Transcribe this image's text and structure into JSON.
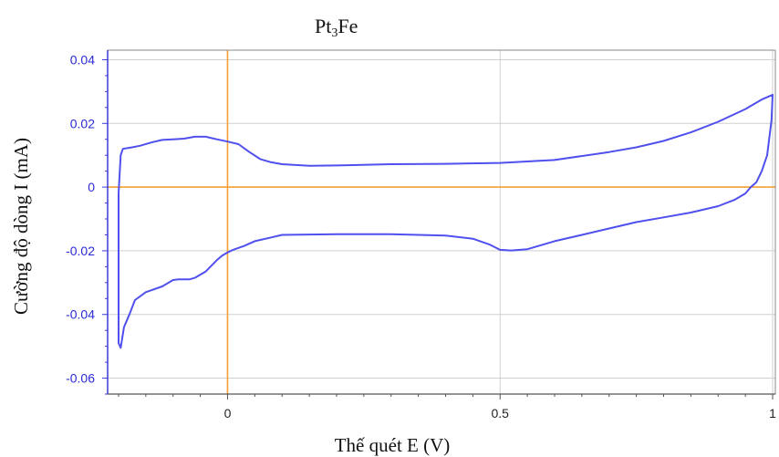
{
  "chart_data": {
    "type": "line",
    "title_main": "Pt",
    "title_sub": "3",
    "title_rest": "Fe",
    "xlabel": "Thế quét E (V)",
    "ylabel": "Cường độ dòng I (mA)",
    "xlim": [
      -0.22,
      1.005
    ],
    "ylim": [
      -0.065,
      0.043
    ],
    "x_ticks": [
      0,
      0.5,
      1
    ],
    "x_tick_labels": [
      "0",
      "0.5",
      "1"
    ],
    "y_ticks": [
      0.04,
      0.02,
      0,
      -0.02,
      -0.04,
      -0.06
    ],
    "y_tick_labels": [
      "0.04",
      "0.02",
      "0",
      "-0.02",
      "-0.04",
      "-0.06"
    ],
    "highlight_lines": {
      "x": 0,
      "y": 0
    },
    "grid": true,
    "colors": {
      "series": "#5050ee",
      "axis": "#3a3ad8",
      "highlight": "#f5a030",
      "grid": "#cfcfcf",
      "frame": "#8a8a8a"
    },
    "series": [
      {
        "x": [
          -0.2,
          -0.196,
          -0.192,
          -0.185,
          -0.175,
          -0.16,
          -0.14,
          -0.12,
          -0.1,
          -0.08,
          -0.06,
          -0.04,
          -0.02,
          0.0,
          0.02,
          0.04,
          0.06,
          0.08,
          0.1,
          0.15,
          0.2,
          0.3,
          0.4,
          0.5,
          0.6,
          0.7,
          0.75,
          0.8,
          0.85,
          0.9,
          0.95,
          0.98,
          1.0,
          0.998,
          0.99,
          0.98,
          0.97,
          0.96,
          0.95,
          0.93,
          0.9,
          0.85,
          0.8,
          0.75,
          0.7,
          0.65,
          0.6,
          0.55,
          0.52,
          0.5,
          0.48,
          0.45,
          0.4,
          0.3,
          0.2,
          0.1,
          0.08,
          0.05,
          0.03,
          0.01,
          0.0,
          -0.01,
          -0.02,
          -0.04,
          -0.06,
          -0.07,
          -0.09,
          -0.1,
          -0.12,
          -0.15,
          -0.17,
          -0.18,
          -0.19,
          -0.196,
          -0.2,
          -0.2
        ],
        "y": [
          -0.002,
          0.01,
          0.012,
          0.0122,
          0.0125,
          0.013,
          0.014,
          0.0148,
          0.015,
          0.0152,
          0.0158,
          0.0158,
          0.015,
          0.0143,
          0.0135,
          0.011,
          0.0088,
          0.0078,
          0.0072,
          0.0067,
          0.0068,
          0.0072,
          0.0073,
          0.0076,
          0.0085,
          0.011,
          0.0125,
          0.0145,
          0.0172,
          0.0205,
          0.0245,
          0.0275,
          0.029,
          0.021,
          0.01,
          0.005,
          0.0015,
          0.0,
          -0.002,
          -0.004,
          -0.006,
          -0.008,
          -0.0095,
          -0.011,
          -0.013,
          -0.015,
          -0.017,
          -0.0195,
          -0.0199,
          -0.0197,
          -0.018,
          -0.0162,
          -0.0152,
          -0.0148,
          -0.0148,
          -0.015,
          -0.0158,
          -0.017,
          -0.0185,
          -0.0197,
          -0.0205,
          -0.0215,
          -0.023,
          -0.0265,
          -0.0285,
          -0.029,
          -0.029,
          -0.0292,
          -0.0312,
          -0.033,
          -0.0355,
          -0.04,
          -0.044,
          -0.0505,
          -0.049,
          -0.002
        ]
      }
    ]
  }
}
